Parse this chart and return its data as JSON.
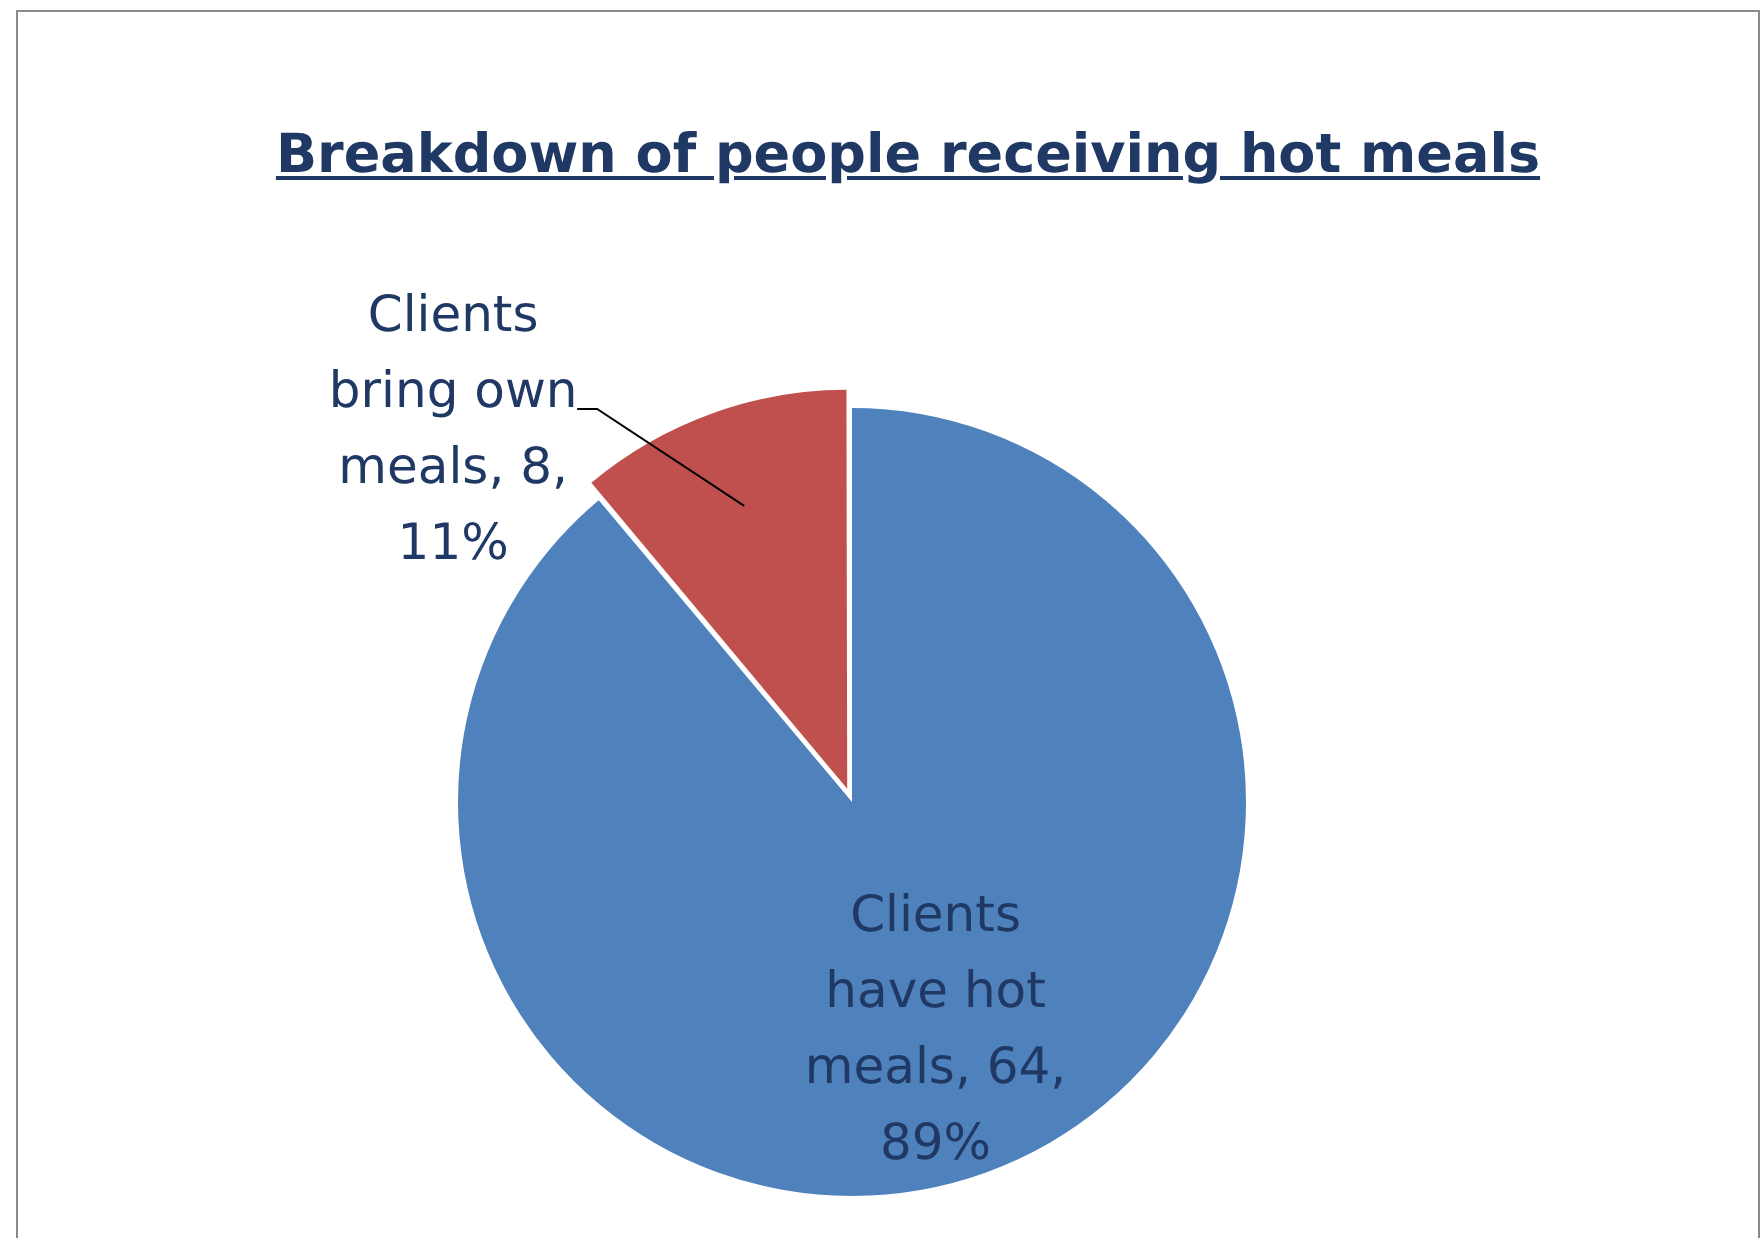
{
  "chart_data": {
    "type": "pie",
    "title": "Breakdown of people receiving hot meals",
    "categories": [
      "Clients have hot meals",
      "Clients bring own meals"
    ],
    "values": [
      64,
      8
    ],
    "value_labels": [
      "64, 89%",
      "8, 11%"
    ],
    "colors": [
      "#4f81bd",
      "#c0504d"
    ],
    "legend": false
  }
}
